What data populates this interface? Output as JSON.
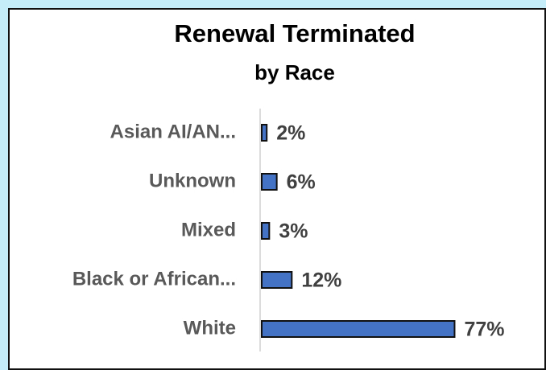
{
  "chart_data": {
    "type": "barh",
    "title": "Renewal Terminated",
    "subtitle": "by Race",
    "categories": [
      "Asian AI/AN...",
      "Unknown",
      "Mixed",
      "Black or African...",
      "White"
    ],
    "values": [
      2,
      6,
      3,
      12,
      77
    ],
    "value_labels": [
      "2%",
      "6%",
      "3%",
      "12%",
      "77%"
    ],
    "color": "#4472c4",
    "xlim": [
      0,
      100
    ]
  }
}
